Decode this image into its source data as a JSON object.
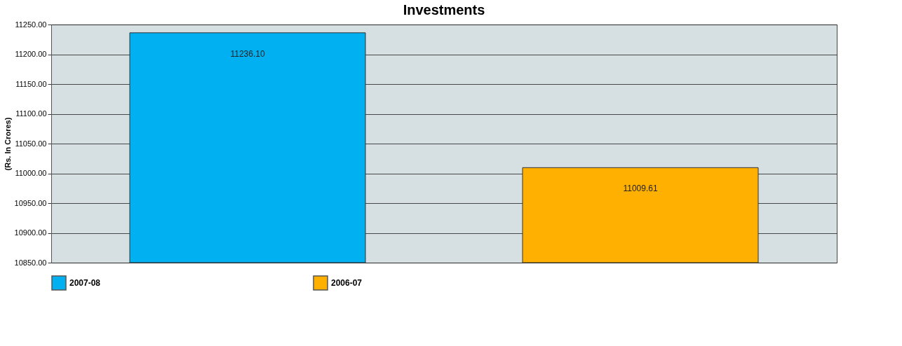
{
  "chart_data": {
    "type": "bar",
    "title": "Investments",
    "ylabel": "(Rs. In Crores)",
    "categories": [
      null,
      null
    ],
    "series": [
      {
        "name": "2007-08",
        "color": "#00b0f0",
        "values": [
          11236.1,
          null
        ],
        "value_labels": [
          "11236.10",
          null
        ]
      },
      {
        "name": "2006-07",
        "color": "#ffb000",
        "values": [
          null,
          11009.61
        ],
        "value_labels": [
          null,
          "11009.61"
        ]
      }
    ],
    "ylim": [
      10850,
      11250
    ],
    "yticks": [
      {
        "value": 10850,
        "label": "10850.00"
      },
      {
        "value": 10900,
        "label": "10900.00"
      },
      {
        "value": 10950,
        "label": "10950.00"
      },
      {
        "value": 11000,
        "label": "11000.00"
      },
      {
        "value": 11050,
        "label": "11050.00"
      },
      {
        "value": 11100,
        "label": "11100.00"
      },
      {
        "value": 11150,
        "label": "11150.00"
      },
      {
        "value": 11200,
        "label": "11200.00"
      },
      {
        "value": 11250,
        "label": "11250.00"
      }
    ],
    "grid": "y",
    "legend": "bottom"
  }
}
